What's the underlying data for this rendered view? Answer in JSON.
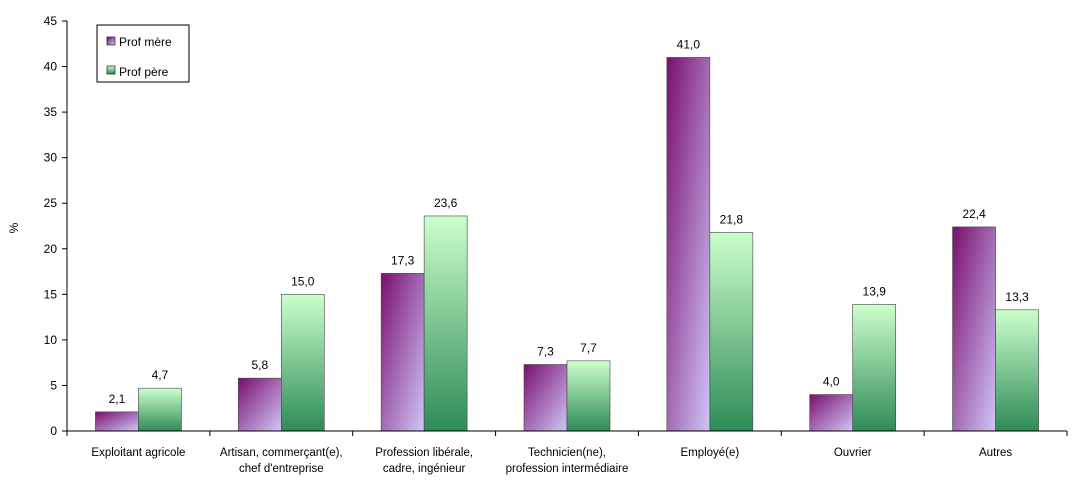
{
  "chart_data": {
    "type": "bar",
    "ylabel": "%",
    "ylim": [
      0,
      45
    ],
    "ytick_step": 5,
    "grid": false,
    "legend_position": "top-left",
    "categories": [
      [
        "Exploitant agricole"
      ],
      [
        "Artisan, commerçant(e),",
        "chef d'entreprise"
      ],
      [
        "Profession libérale,",
        "cadre, ingénieur"
      ],
      [
        "Technicien(ne),",
        "profession intermédiaire"
      ],
      [
        "Employé(e)"
      ],
      [
        "Ouvrier"
      ],
      [
        "Autres"
      ]
    ],
    "series": [
      {
        "name": "Prof mère",
        "values": [
          2.1,
          5.8,
          17.3,
          7.3,
          41.0,
          4.0,
          22.4
        ],
        "labels": [
          "2,1",
          "5,8",
          "17,3",
          "7,3",
          "41,0",
          "4,0",
          "22,4"
        ],
        "color_top": "#7a0f6e",
        "color_bottom": "#cfc6f7"
      },
      {
        "name": "Prof père",
        "values": [
          4.7,
          15.0,
          23.6,
          7.7,
          21.8,
          13.9,
          13.3
        ],
        "labels": [
          "4,7",
          "15,0",
          "23,6",
          "7,7",
          "21,8",
          "13,9",
          "13,3"
        ],
        "color_top": "#ccffcc",
        "color_bottom": "#2e8b57"
      }
    ]
  }
}
